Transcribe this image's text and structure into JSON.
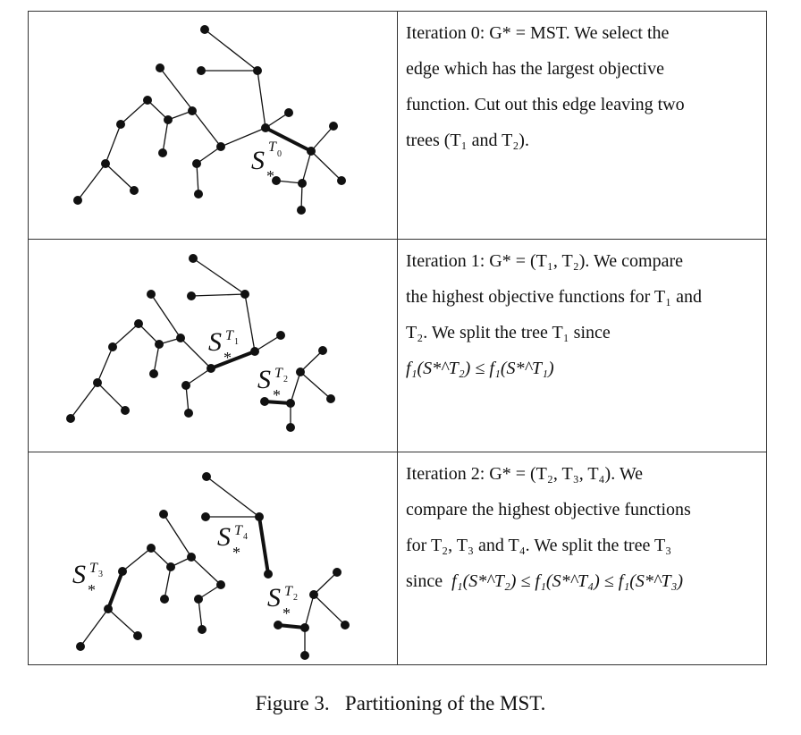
{
  "figure": {
    "caption_number": "Figure 3.",
    "caption_text": "Partitioning of the MST.",
    "rows": [
      {
        "lines": [
          "Iteration 0: G* = MST. We select the",
          "edge which has the largest objective",
          "function. Cut out this edge leaving two",
          "trees (T₁ and T₂)."
        ],
        "labels": [
          {
            "name": "S",
            "tree": "T",
            "tree_index": "0"
          }
        ]
      },
      {
        "lines": [
          "Iteration 1: G* = (T₁, T₂). We compare",
          "the highest objective functions for T₁ and",
          "T₂. We split the tree T₁ since"
        ],
        "formula": "f₁(S*^T₂) ≤ f₁(S*^T₁)",
        "labels": [
          {
            "name": "S",
            "tree": "T",
            "tree_index": "1"
          },
          {
            "name": "S",
            "tree": "T",
            "tree_index": "2"
          }
        ]
      },
      {
        "lines": [
          "Iteration 2: G* = (T₂, T₃, T₄). We",
          "compare the highest objective functions",
          "for T₂, T₃ and T₄. We split the tree T₃"
        ],
        "formula_prefix": "since",
        "formula": "f₁(S*^T₂) ≤ f₁(S*^T₄) ≤ f₁(S*^T₃)",
        "labels": [
          {
            "name": "S",
            "tree": "T",
            "tree_index": "3"
          },
          {
            "name": "S",
            "tree": "T",
            "tree_index": "4"
          },
          {
            "name": "S",
            "tree": "T",
            "tree_index": "2"
          }
        ]
      }
    ]
  }
}
